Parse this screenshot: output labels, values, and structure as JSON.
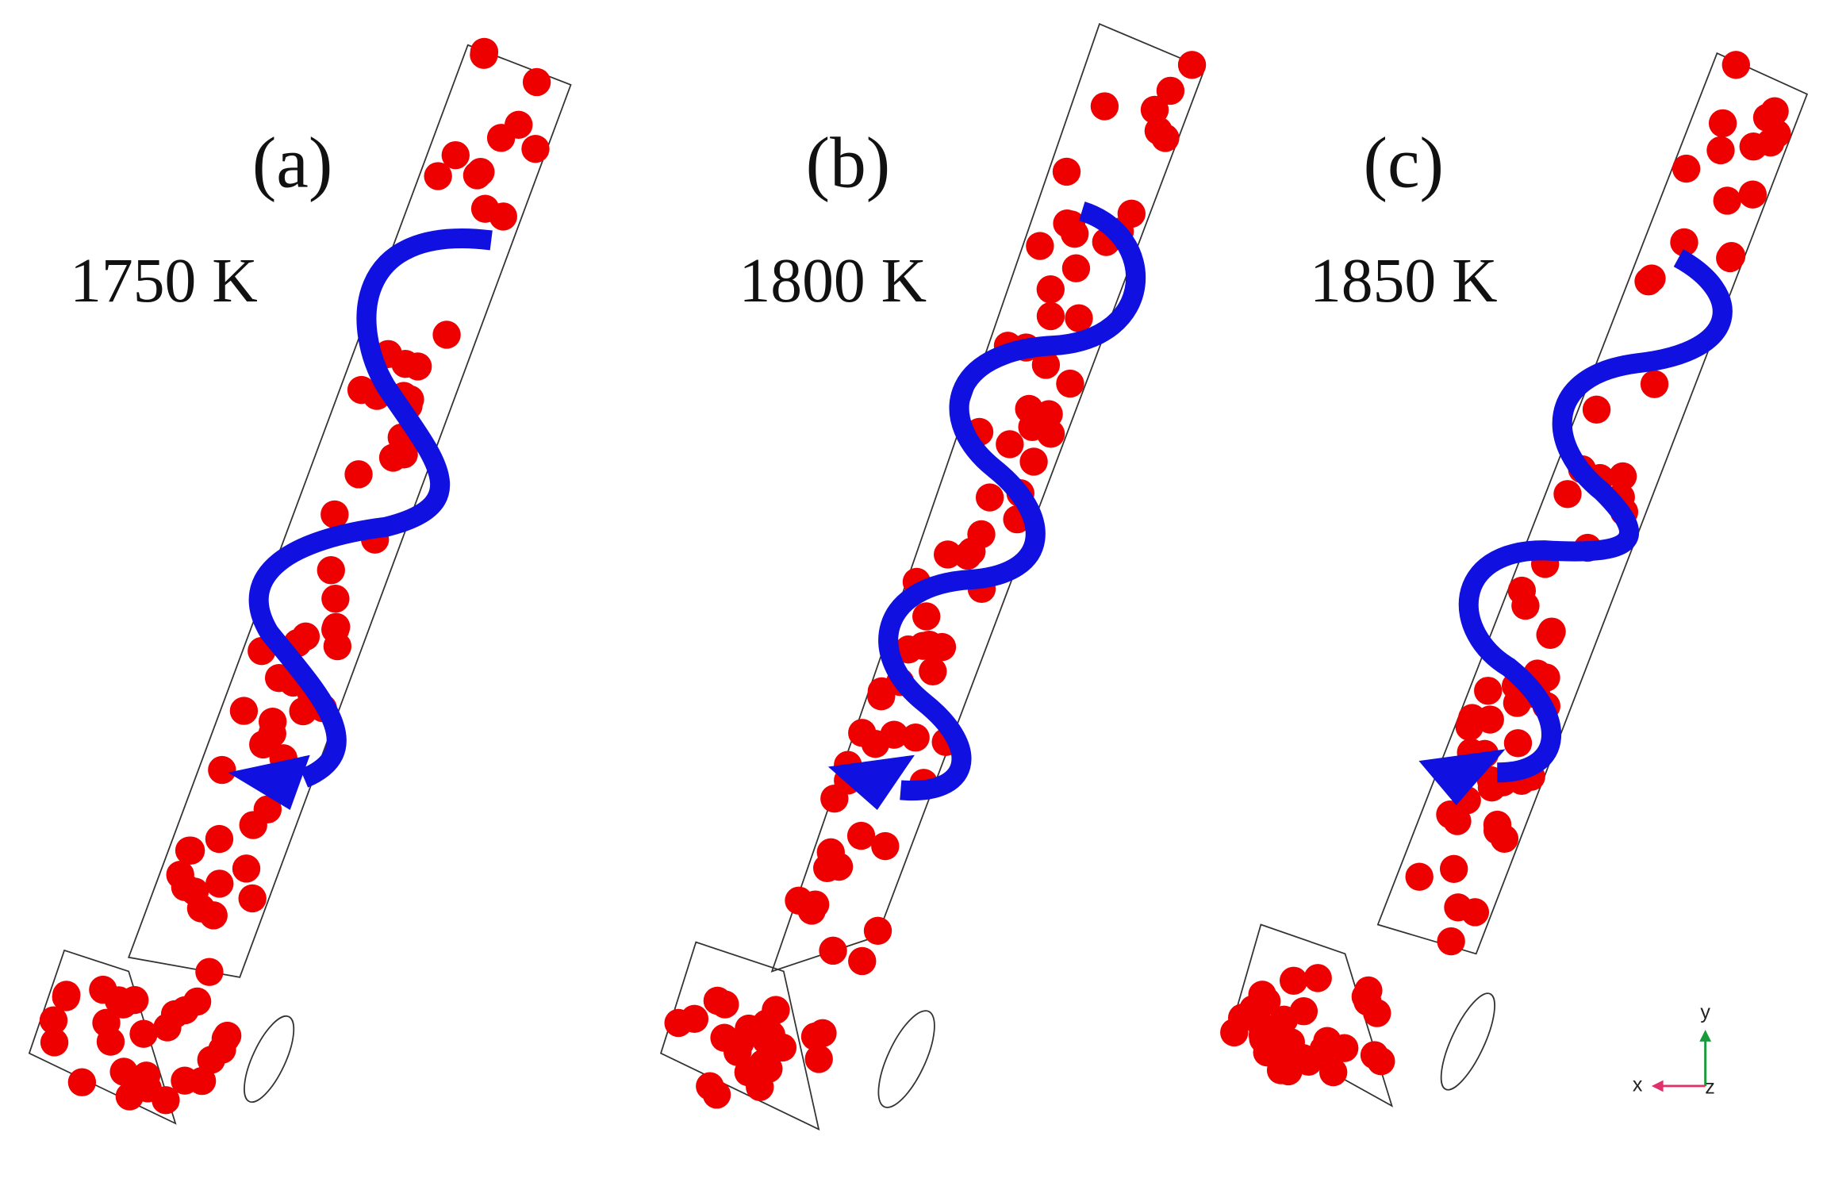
{
  "panels": [
    {
      "label": "(a)",
      "temperature": "1750 K"
    },
    {
      "label": "(b)",
      "temperature": "1800 K"
    },
    {
      "label": "(c)",
      "temperature": "1850 K"
    }
  ],
  "axes": {
    "x": "x",
    "y": "y",
    "z": "z"
  }
}
